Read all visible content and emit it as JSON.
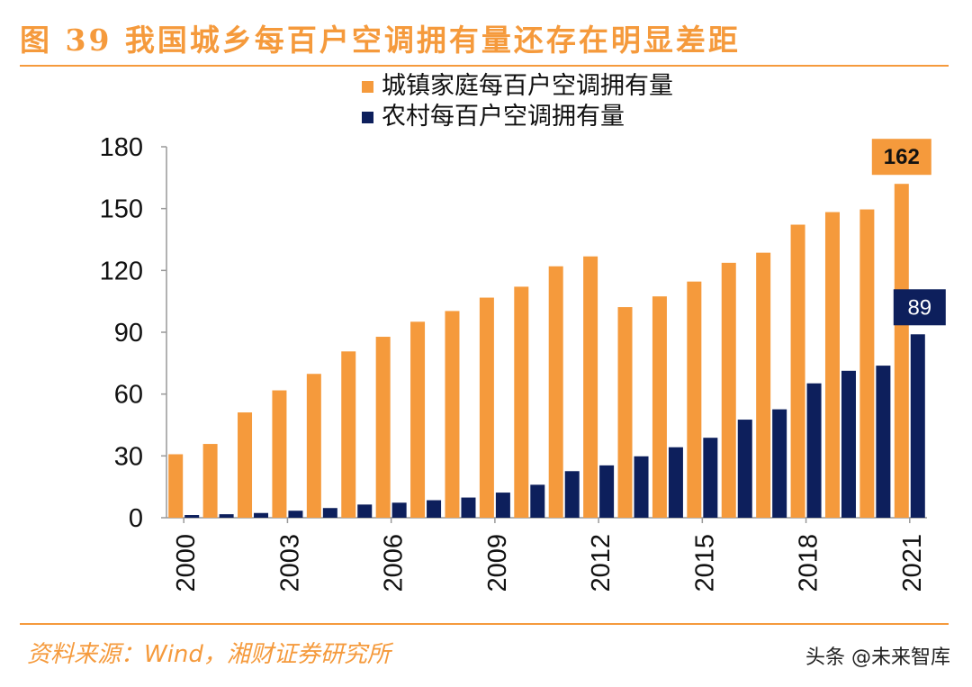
{
  "title": "图 39 我国城乡每百户空调拥有量还存在明显差距",
  "source": "资料来源：Wind，湘财证券研究所",
  "watermark": "头条 @未来智库",
  "colors": {
    "urban": "#f59a3c",
    "rural": "#0d1f5c",
    "axis": "#999999",
    "text": "#111111",
    "accent": "#f59a3c"
  },
  "chart_data": {
    "type": "bar",
    "title": "我国城乡每百户空调拥有量还存在明显差距",
    "categories": [
      "2000",
      "2001",
      "2002",
      "2003",
      "2004",
      "2005",
      "2006",
      "2007",
      "2008",
      "2009",
      "2010",
      "2011",
      "2012",
      "2013",
      "2014",
      "2015",
      "2016",
      "2017",
      "2018",
      "2019",
      "2020",
      "2021"
    ],
    "tick_labels": [
      "2000",
      "2003",
      "2006",
      "2009",
      "2012",
      "2015",
      "2018",
      "2021"
    ],
    "series": [
      {
        "name": "城镇家庭每百户空调拥有量",
        "color": "#f59a3c",
        "values": [
          30.8,
          35.8,
          51.1,
          61.8,
          69.8,
          80.7,
          87.8,
          95.1,
          100.3,
          106.8,
          112.1,
          122.0,
          126.8,
          102.2,
          107.4,
          114.6,
          123.7,
          128.6,
          142.2,
          148.3,
          149.6,
          162
        ]
      },
      {
        "name": "农村每百户空调拥有量",
        "color": "#0d1f5c",
        "values": [
          1.3,
          1.7,
          2.3,
          3.4,
          4.7,
          6.4,
          7.3,
          8.5,
          9.8,
          12.2,
          16.0,
          22.6,
          25.4,
          29.8,
          34.2,
          38.8,
          47.6,
          52.6,
          65.2,
          71.3,
          73.8,
          89
        ]
      }
    ],
    "annotations": [
      {
        "series": 0,
        "category": "2021",
        "label": "162"
      },
      {
        "series": 1,
        "category": "2021",
        "label": "89"
      }
    ],
    "yticks": [
      0,
      30,
      60,
      90,
      120,
      150,
      180
    ],
    "ylim": [
      0,
      180
    ],
    "xlabel": "",
    "ylabel": "",
    "legend_position": "top"
  }
}
